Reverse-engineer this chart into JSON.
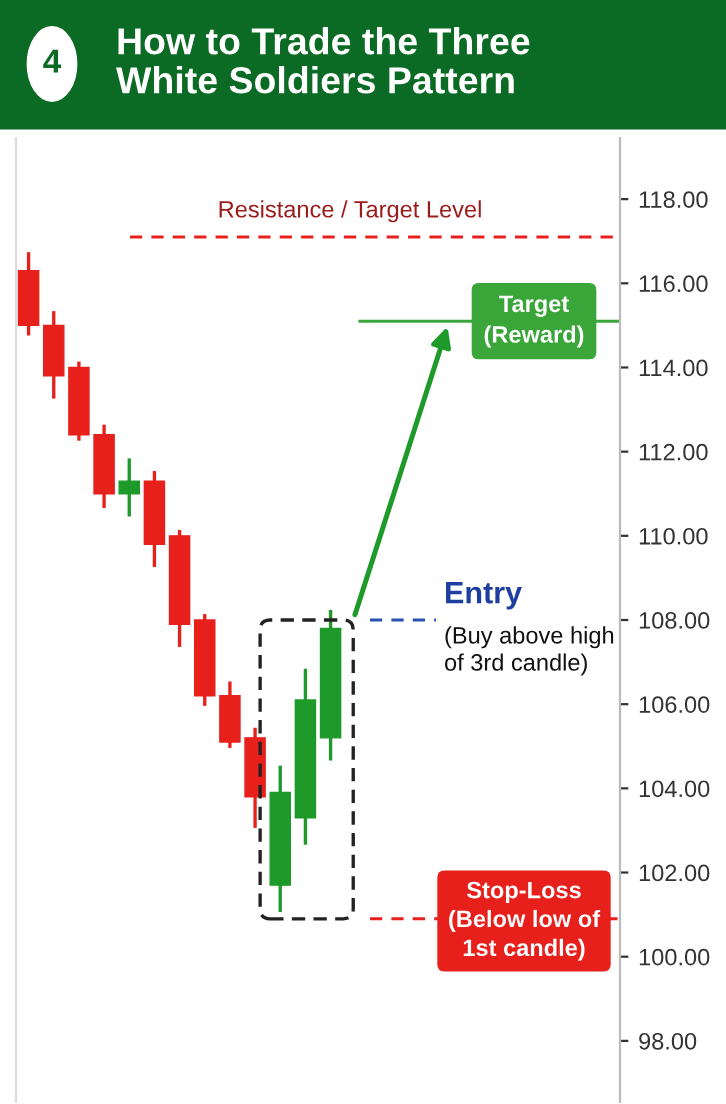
{
  "chart_data": {
    "type": "candlestick",
    "title": "How to Trade the Three\nWhite Soldiers Pattern",
    "categories": [
      null,
      null,
      null,
      null,
      null,
      null,
      null,
      null,
      null,
      null,
      null,
      null,
      null,
      null,
      null,
      null,
      null,
      null,
      null,
      null,
      null,
      null,
      null,
      null
    ],
    "ohlc": [
      [
        116.3,
        116.7,
        114.8,
        115.0
      ],
      [
        115.0,
        115.3,
        113.3,
        113.8
      ],
      [
        114.0,
        114.1,
        112.3,
        112.4
      ],
      [
        112.4,
        112.6,
        110.7,
        111.0
      ],
      [
        111.0,
        111.8,
        110.5,
        111.3
      ],
      [
        111.3,
        111.5,
        109.3,
        109.8
      ],
      [
        110.0,
        110.1,
        107.4,
        107.9
      ],
      [
        108.0,
        108.1,
        106.0,
        106.2
      ],
      [
        106.2,
        106.5,
        105.0,
        105.1
      ],
      [
        105.2,
        105.4,
        103.1,
        103.8
      ],
      [
        101.7,
        104.5,
        101.1,
        103.9
      ],
      [
        103.3,
        106.8,
        102.7,
        106.1
      ],
      [
        105.2,
        108.2,
        104.7,
        107.8
      ],
      null,
      null,
      null,
      null,
      null,
      null,
      null,
      null,
      null,
      null,
      null
    ],
    "colors": [
      "#e8201c",
      "#e8201c",
      "#e8201c",
      "#e8201c",
      "#1e9a2a",
      "#e8201c",
      "#e8201c",
      "#e8201c",
      "#e8201c",
      "#e8201c",
      "#1e9a2a",
      "#1e9a2a",
      "#1e9a2a",
      null,
      null,
      null,
      null,
      null,
      null,
      null,
      null,
      null,
      null,
      null
    ],
    "ylim": [
      96.5,
      119.5
    ],
    "yticks": [
      {
        "value": 98,
        "label": "98.00"
      },
      {
        "value": 100,
        "label": "100.00"
      },
      {
        "value": 102,
        "label": "102.00"
      },
      {
        "value": 104,
        "label": "104.00"
      },
      {
        "value": 106,
        "label": "106.00"
      },
      {
        "value": 108,
        "label": "108.00"
      },
      {
        "value": 110,
        "label": "110.00"
      },
      {
        "value": 112,
        "label": "112.00"
      },
      {
        "value": 114,
        "label": "114.00"
      },
      {
        "value": 116,
        "label": "116.00"
      },
      {
        "value": 118,
        "label": "118.00"
      }
    ],
    "tick_labels": "y",
    "ref_lines": [
      {
        "axis": "y",
        "value": 117.1,
        "label": "Resistance / Target Level",
        "color": "#e8201c",
        "line_style": "dashed"
      },
      {
        "axis": "y",
        "value": 115.1,
        "label": "Target\n(Reward)",
        "color": "#3aa63a",
        "line_style": "solid"
      },
      {
        "axis": "y",
        "value": 108.0,
        "label": "Entry",
        "color": "#2850b0",
        "line_style": "dashed"
      },
      {
        "axis": "y",
        "value": 100.9,
        "label": "Stop-Loss\n(Below low of\n1st candle)",
        "color": "#e8201c",
        "line_style": "dashed"
      }
    ],
    "annotations": [
      "4",
      "(Buy above high\nof 3rd candle)"
    ]
  }
}
